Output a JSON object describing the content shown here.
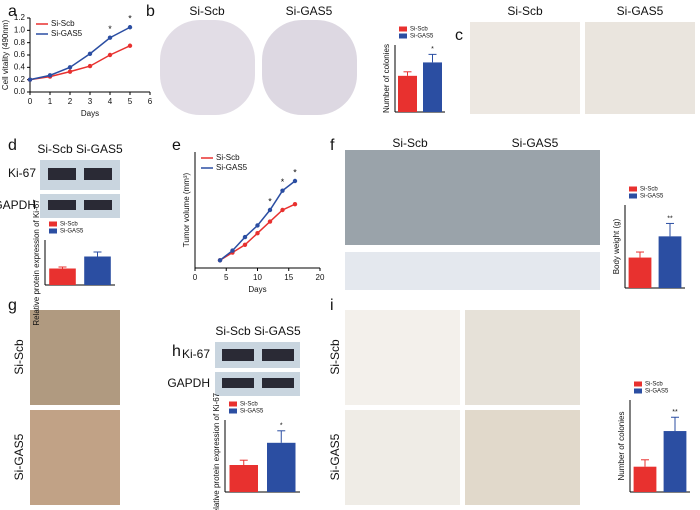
{
  "panel_labels": [
    "a",
    "b",
    "c",
    "d",
    "e",
    "f",
    "g",
    "h",
    "i"
  ],
  "image_labels": {
    "b": [
      "Si-Scb",
      "Si-GAS5"
    ],
    "c": [
      "Si-Scb",
      "Si-GAS5"
    ],
    "d": "Si-Scb Si-GAS5",
    "d_blot": [
      "Ki-67",
      "GAPDH"
    ],
    "f": [
      "Si-Scb",
      "Si-GAS5"
    ],
    "g": [
      "Si-Scb",
      "Si-GAS5"
    ],
    "h": "Si-Scb Si-GAS5",
    "h_blot": [
      "Ki-67",
      "GAPDH"
    ],
    "i": [
      "Si-Scb",
      "Si-GAS5"
    ]
  },
  "chart_data": [
    {
      "type": "line",
      "x_label": "Days",
      "y_label": "Cell vitality (490nm)",
      "x": [
        0,
        1,
        2,
        3,
        4,
        5
      ],
      "xlim": [
        0,
        6
      ],
      "xticks": [
        0,
        1,
        2,
        3,
        4,
        5,
        6
      ],
      "ylim": [
        0,
        1.2
      ],
      "yticks": [
        {
          "value": 0,
          "label": "0.0"
        },
        0.2,
        0.4,
        0.6,
        0.8,
        {
          "value": 1,
          "label": "1.0"
        },
        1.2
      ],
      "series": [
        {
          "name": "Si-Scb",
          "color": "#e8312f",
          "values": [
            0.2,
            0.25,
            0.33,
            0.42,
            0.6,
            0.75
          ]
        },
        {
          "name": "Si-GAS5",
          "color": "#2b4ea2",
          "values": [
            0.2,
            0.27,
            0.4,
            0.62,
            0.88,
            1.05
          ]
        }
      ],
      "annotations": [
        {
          "x": 4,
          "text": "*"
        },
        {
          "x": 5,
          "text": "*"
        }
      ]
    },
    {
      "type": "bar",
      "y_label": "Number of colonies",
      "ylim": [
        0,
        250
      ],
      "series": [
        {
          "name": "Si-Scb",
          "color": "#e8312f",
          "values": [
            135
          ],
          "errors": [
            15
          ]
        },
        {
          "name": "Si-GAS5",
          "color": "#2b4ea2",
          "values": [
            185
          ],
          "errors": [
            30
          ],
          "annotation": "*"
        }
      ]
    },
    {
      "type": "bar",
      "y_label": "Relative protein expression of Ki-67",
      "ylim": [
        0,
        1.5
      ],
      "series": [
        {
          "name": "Si-Scb",
          "color": "#e8312f",
          "values": [
            0.55
          ],
          "errors": [
            0.05
          ]
        },
        {
          "name": "Si-GAS5",
          "color": "#2b4ea2",
          "values": [
            0.95
          ],
          "errors": [
            0.15
          ]
        }
      ]
    },
    {
      "type": "line",
      "x_label": "Days",
      "y_label": "Tumor volume (mm³)",
      "x": [
        4,
        6,
        8,
        10,
        12,
        14,
        16
      ],
      "xlim": [
        0,
        20
      ],
      "xticks": [
        0,
        5,
        10,
        15,
        20
      ],
      "ylim": [
        0,
        300
      ],
      "series": [
        {
          "name": "Si-Scb",
          "color": "#e8312f",
          "values": [
            20,
            40,
            60,
            90,
            120,
            150,
            165
          ]
        },
        {
          "name": "Si-GAS5",
          "color": "#2b4ea2",
          "values": [
            20,
            45,
            80,
            110,
            150,
            200,
            225
          ]
        }
      ],
      "annotations": [
        {
          "x": 12,
          "text": "*"
        },
        {
          "x": 14,
          "text": "*"
        },
        {
          "x": 16,
          "text": "*"
        }
      ]
    },
    {
      "type": "bar",
      "y_label": "Body weight (g)",
      "ylim": [
        0,
        0.9
      ],
      "series": [
        {
          "name": "Si-Scb",
          "color": "#e8312f",
          "values": [
            0.33
          ],
          "errors": [
            0.06
          ]
        },
        {
          "name": "Si-GAS5",
          "color": "#2b4ea2",
          "values": [
            0.56
          ],
          "errors": [
            0.14
          ],
          "annotation": "**"
        }
      ]
    },
    {
      "type": "bar",
      "y_label": "Relative protein expression of Ki-67",
      "ylim": [
        0,
        1.2
      ],
      "series": [
        {
          "name": "Si-Scb",
          "color": "#e8312f",
          "values": [
            0.45
          ],
          "errors": [
            0.08
          ]
        },
        {
          "name": "Si-GAS5",
          "color": "#2b4ea2",
          "values": [
            0.82
          ],
          "errors": [
            0.2
          ],
          "annotation": "*"
        }
      ]
    },
    {
      "type": "bar",
      "y_label": "Number of colonies",
      "ylim": [
        0,
        80
      ],
      "series": [
        {
          "name": "Si-Scb",
          "color": "#e8312f",
          "values": [
            22
          ],
          "errors": [
            6
          ]
        },
        {
          "name": "Si-GAS5",
          "color": "#2b4ea2",
          "values": [
            53
          ],
          "errors": [
            12
          ],
          "annotation": "**"
        }
      ]
    }
  ]
}
